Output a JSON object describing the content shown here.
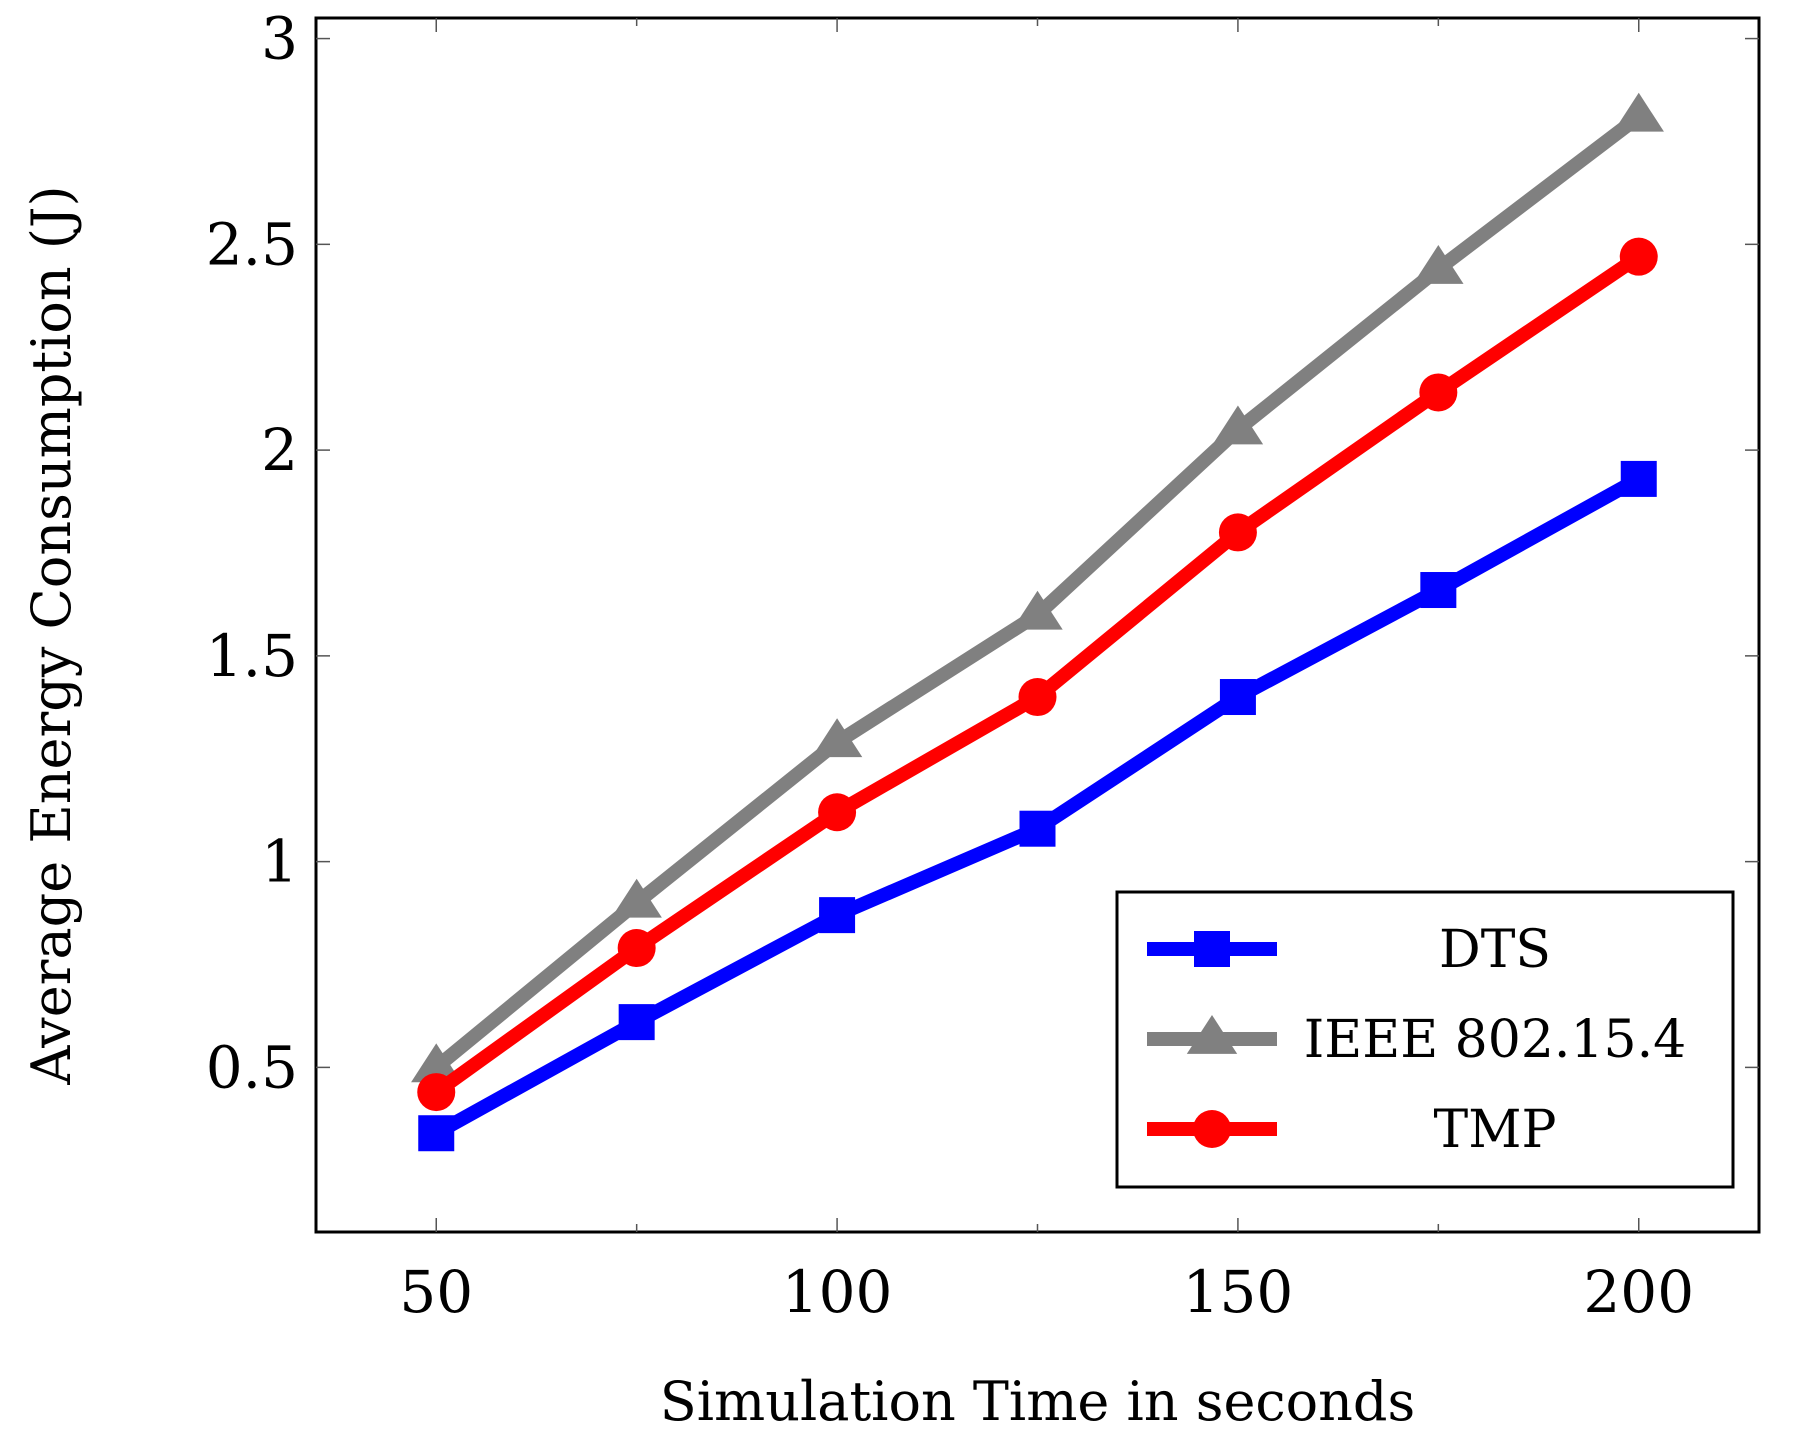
{
  "chart_data": {
    "type": "line",
    "title": "",
    "xlabel": "Simulation Time in seconds",
    "ylabel": "Average Energy Consumption (J)",
    "xlim": [
      35,
      215
    ],
    "ylim": [
      0.1,
      3.05
    ],
    "xticks": [
      50,
      100,
      150,
      200
    ],
    "xtick_labels": [
      "50",
      "100",
      "150",
      "200"
    ],
    "yticks": [
      0.5,
      1,
      1.5,
      2,
      2.5,
      3
    ],
    "ytick_labels": [
      "0.5",
      "1",
      "1.5",
      "2",
      "2.5",
      "3"
    ],
    "minor_xticks": [
      75,
      125,
      175
    ],
    "legend_position": "bottom-right",
    "x": [
      50,
      75,
      100,
      125,
      150,
      175,
      200
    ],
    "series": [
      {
        "name": "DTS",
        "color": "#0000ff",
        "marker": "square",
        "values": [
          0.34,
          0.61,
          0.87,
          1.08,
          1.4,
          1.66,
          1.93
        ]
      },
      {
        "name": "IEEE 802.15.4",
        "color": "#808080",
        "marker": "triangle",
        "values": [
          0.5,
          0.9,
          1.29,
          1.6,
          2.05,
          2.44,
          2.81
        ]
      },
      {
        "name": "TMP",
        "color": "#ff0000",
        "marker": "circle",
        "values": [
          0.44,
          0.79,
          1.12,
          1.4,
          1.8,
          2.14,
          2.47
        ]
      }
    ]
  }
}
